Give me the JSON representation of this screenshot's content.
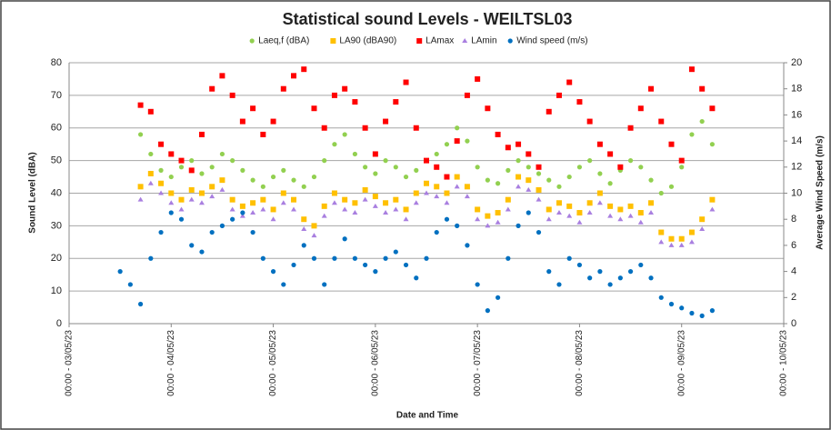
{
  "chart_data": {
    "type": "scatter",
    "title": "Statistical sound Levels - WEILTSL03",
    "xlabel": "Date and Time",
    "ylabel": "Sound Level (dBA)",
    "y2label": "Average Wind Speed (m/s)",
    "legend": "top",
    "grid": true,
    "xlim": [
      0,
      7
    ],
    "xticks": [
      {
        "value": 0,
        "label": "00:00 - 03/05/23"
      },
      {
        "value": 1,
        "label": "00:00 - 04/05/23"
      },
      {
        "value": 2,
        "label": "00:00 - 05/05/23"
      },
      {
        "value": 3,
        "label": "00:00 - 06/05/23"
      },
      {
        "value": 4,
        "label": "00:00 - 07/05/23"
      },
      {
        "value": 5,
        "label": "00:00 - 08/05/23"
      },
      {
        "value": 6,
        "label": "00:00 - 09/05/23"
      },
      {
        "value": 7,
        "label": "00:00 - 10/05/23"
      }
    ],
    "ylim": [
      0,
      80
    ],
    "yticks": [
      0,
      10,
      20,
      30,
      40,
      50,
      60,
      70,
      80
    ],
    "y2lim": [
      0,
      20
    ],
    "y2ticks": [
      0,
      2,
      4,
      6,
      8,
      10,
      12,
      14,
      16,
      18,
      20
    ],
    "x": [
      0.5,
      0.6,
      0.7,
      0.8,
      0.9,
      1.0,
      1.1,
      1.2,
      1.3,
      1.4,
      1.5,
      1.6,
      1.7,
      1.8,
      1.9,
      2.0,
      2.1,
      2.2,
      2.3,
      2.4,
      2.5,
      2.6,
      2.7,
      2.8,
      2.9,
      3.0,
      3.1,
      3.2,
      3.3,
      3.4,
      3.5,
      3.6,
      3.7,
      3.8,
      3.9,
      4.0,
      4.1,
      4.2,
      4.3,
      4.4,
      4.5,
      4.6,
      4.7,
      4.8,
      4.9,
      5.0,
      5.1,
      5.2,
      5.3,
      5.4,
      5.5,
      5.6,
      5.7,
      5.8,
      5.9,
      6.0,
      6.1,
      6.2,
      6.3
    ],
    "series": [
      {
        "name": "Laeq,f (dBA)",
        "color": "#92d050",
        "marker": "circle",
        "values": [
          null,
          null,
          58,
          52,
          47,
          45,
          48,
          50,
          46,
          48,
          52,
          50,
          47,
          44,
          42,
          45,
          47,
          44,
          42,
          45,
          50,
          55,
          58,
          52,
          48,
          46,
          50,
          48,
          45,
          47,
          50,
          52,
          55,
          60,
          56,
          48,
          44,
          43,
          47,
          50,
          48,
          46,
          44,
          42,
          45,
          48,
          50,
          46,
          43,
          47,
          50,
          48,
          44,
          40,
          42,
          48,
          58,
          62,
          55
        ]
      },
      {
        "name": "LA90  (dBA90)",
        "color": "#ffc000",
        "marker": "square",
        "values": [
          null,
          null,
          42,
          46,
          43,
          40,
          38,
          41,
          40,
          42,
          44,
          38,
          36,
          37,
          38,
          35,
          40,
          38,
          32,
          30,
          36,
          40,
          38,
          37,
          41,
          39,
          37,
          38,
          35,
          40,
          43,
          42,
          40,
          45,
          42,
          35,
          33,
          34,
          38,
          45,
          44,
          41,
          35,
          37,
          36,
          34,
          37,
          40,
          36,
          35,
          36,
          34,
          37,
          28,
          26,
          26,
          28,
          32,
          38
        ]
      },
      {
        "name": "LAmax",
        "color": "#ff0000",
        "marker": "square",
        "values": [
          null,
          null,
          67,
          65,
          55,
          52,
          50,
          47,
          58,
          72,
          76,
          70,
          62,
          66,
          58,
          62,
          72,
          76,
          78,
          66,
          60,
          70,
          72,
          68,
          60,
          52,
          62,
          68,
          74,
          60,
          50,
          48,
          45,
          56,
          70,
          75,
          66,
          58,
          54,
          55,
          52,
          48,
          65,
          70,
          74,
          68,
          62,
          55,
          52,
          48,
          60,
          66,
          72,
          62,
          55,
          50,
          78,
          72,
          66
        ]
      },
      {
        "name": "LAmin",
        "color": "#a97fe0",
        "marker": "triangle",
        "values": [
          null,
          null,
          38,
          43,
          40,
          37,
          35,
          38,
          37,
          39,
          41,
          35,
          33,
          34,
          35,
          32,
          37,
          35,
          29,
          27,
          33,
          37,
          35,
          34,
          38,
          36,
          34,
          35,
          32,
          37,
          40,
          39,
          37,
          42,
          39,
          32,
          30,
          31,
          35,
          42,
          41,
          38,
          32,
          34,
          33,
          31,
          34,
          37,
          33,
          32,
          33,
          31,
          34,
          25,
          24,
          24,
          25,
          29,
          35
        ]
      },
      {
        "name": "Wind speed (m/s)",
        "color": "#0070c0",
        "marker": "circle",
        "axis": "y2",
        "values": [
          4,
          3,
          1.5,
          5,
          7,
          8.5,
          8,
          6,
          5.5,
          7,
          7.5,
          8,
          8.5,
          7,
          5,
          4,
          3,
          4.5,
          6,
          5,
          3,
          5,
          6.5,
          5,
          4.5,
          4,
          5,
          5.5,
          4.5,
          3.5,
          5,
          7,
          8,
          7.5,
          6,
          3,
          1,
          2,
          5,
          7.5,
          8.5,
          7,
          4,
          3,
          5,
          4.5,
          3.5,
          4,
          3,
          3.5,
          4,
          4.5,
          3.5,
          2,
          1.5,
          1.2,
          0.8,
          0.6,
          1.0
        ]
      }
    ]
  }
}
